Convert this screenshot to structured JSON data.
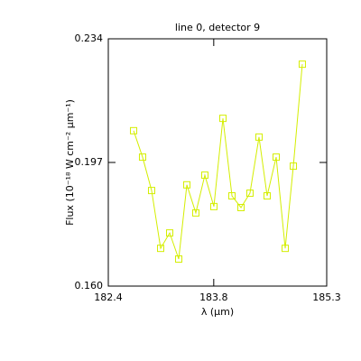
{
  "chart_data": {
    "type": "line",
    "title": "line 0, detector 9",
    "xlabel": "λ (μm)",
    "ylabel": "Flux (10⁻¹⁸ W cm⁻² μm⁻¹)",
    "x": [
      182.736,
      182.855,
      182.975,
      183.095,
      183.215,
      183.335,
      183.443,
      183.562,
      183.682,
      183.802,
      183.922,
      184.042,
      184.162,
      184.281,
      184.401,
      184.509,
      184.629,
      184.749,
      184.857,
      184.976
    ],
    "series": [
      {
        "color": "#d4ee00",
        "values": [
          0.2065,
          0.1986,
          0.1886,
          0.1713,
          0.1759,
          0.1681,
          0.1903,
          0.1819,
          0.1932,
          0.1838,
          0.2102,
          0.187,
          0.1835,
          0.1878,
          0.2046,
          0.187,
          0.1986,
          0.1713,
          0.1959,
          0.2264
        ]
      }
    ],
    "xlim": [
      182.4,
      185.3
    ],
    "xticks": [
      182.4,
      183.8,
      185.3
    ],
    "ylim": [
      0.16,
      0.234
    ],
    "yticks": [
      {
        "value": 0.16,
        "label": "0.160"
      },
      0.197,
      0.234
    ]
  }
}
